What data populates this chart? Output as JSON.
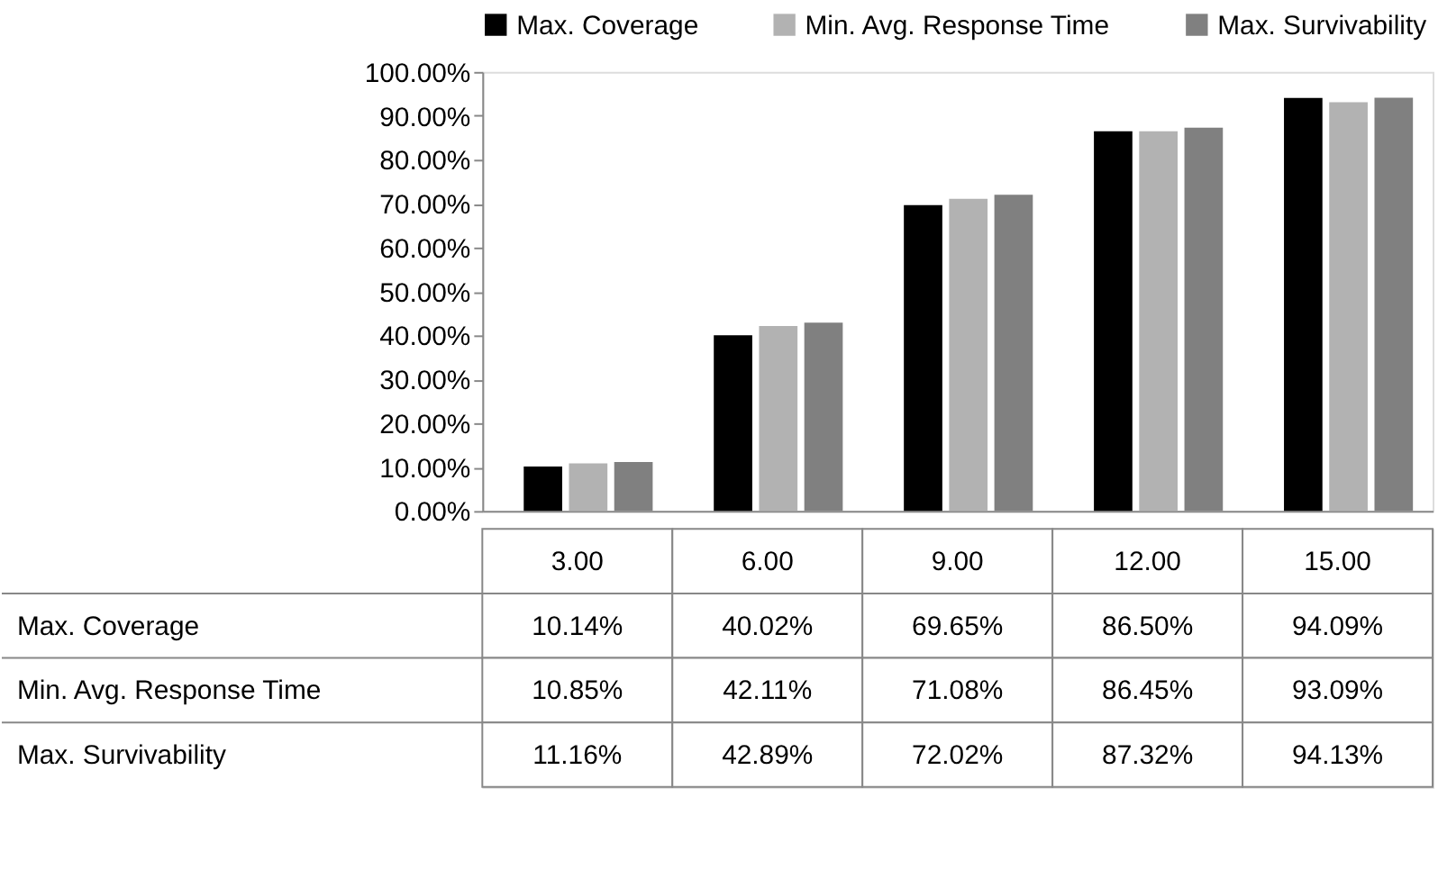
{
  "chart_data": {
    "type": "bar",
    "categories": [
      "3.00",
      "6.00",
      "9.00",
      "12.00",
      "15.00"
    ],
    "series": [
      {
        "name": "Max. Coverage",
        "color": "#000000",
        "values": [
          10.14,
          40.02,
          69.65,
          86.5,
          94.09
        ],
        "value_labels": [
          "10.14%",
          "40.02%",
          "69.65%",
          "86.50%",
          "94.09%"
        ]
      },
      {
        "name": "Min. Avg. Response Time",
        "color": "#b2b2b2",
        "values": [
          10.85,
          42.11,
          71.08,
          86.45,
          93.09
        ],
        "value_labels": [
          "10.85%",
          "42.11%",
          "71.08%",
          "86.45%",
          "93.09%"
        ]
      },
      {
        "name": "Max. Survivability",
        "color": "#808080",
        "values": [
          11.16,
          42.89,
          72.02,
          87.32,
          94.13
        ],
        "value_labels": [
          "11.16%",
          "42.89%",
          "72.02%",
          "87.32%",
          "94.13%"
        ]
      }
    ],
    "ylim": [
      0,
      100
    ],
    "yticks": [
      {
        "value": 0,
        "label": "0.00%"
      },
      {
        "value": 10,
        "label": "10.00%"
      },
      {
        "value": 20,
        "label": "20.00%"
      },
      {
        "value": 30,
        "label": "30.00%"
      },
      {
        "value": 40,
        "label": "40.00%"
      },
      {
        "value": 50,
        "label": "50.00%"
      },
      {
        "value": 60,
        "label": "60.00%"
      },
      {
        "value": 70,
        "label": "70.00%"
      },
      {
        "value": 80,
        "label": "80.00%"
      },
      {
        "value": 90,
        "label": "90.00%"
      },
      {
        "value": 100,
        "label": "100.00%"
      }
    ],
    "grid": false,
    "legend": "top left"
  }
}
